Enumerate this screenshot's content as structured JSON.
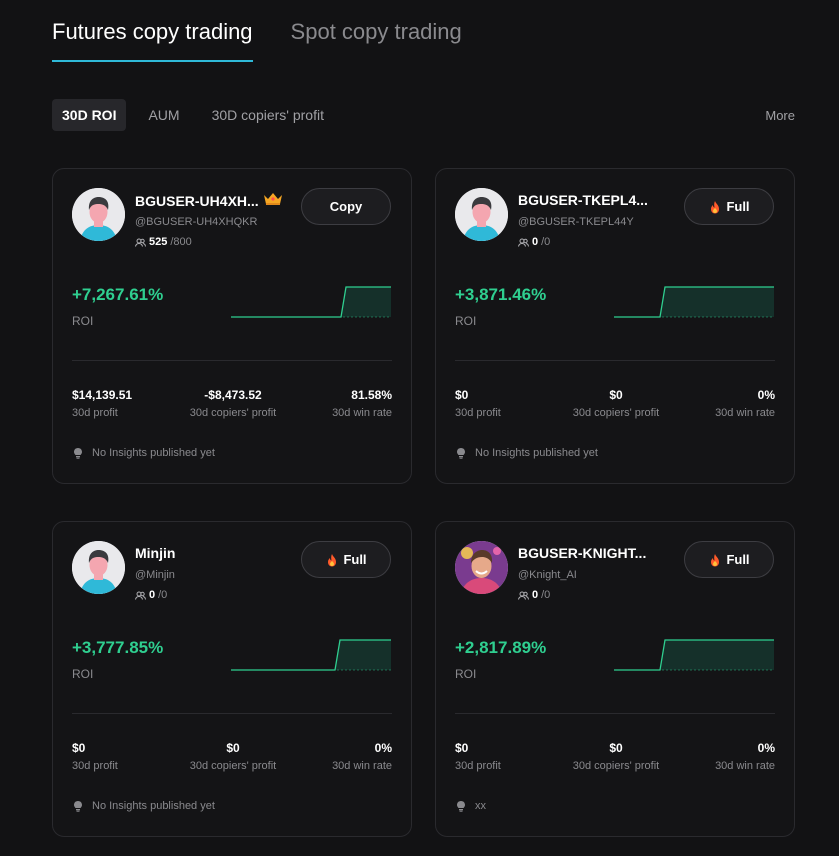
{
  "tabs": [
    {
      "label": "Futures copy trading",
      "active": true
    },
    {
      "label": "Spot copy trading",
      "active": false
    }
  ],
  "filters": [
    {
      "label": "30D ROI",
      "active": true
    },
    {
      "label": "AUM",
      "active": false
    },
    {
      "label": "30D copiers' profit",
      "active": false
    }
  ],
  "more_label": "More",
  "colors": {
    "accent": "#2fb9d8",
    "positive": "#2fcf90",
    "background": "#121214"
  },
  "traders": [
    {
      "name": "BGUSER-UH4XH...",
      "badge_icon": "crown-icon",
      "handle": "@BGUSER-UH4XHQKR",
      "copiers_current": "525",
      "copiers_max": "/800",
      "button_label": "Copy",
      "button_icon": null,
      "roi": "+7,267.61%",
      "roi_label": "ROI",
      "avatar": "default-avatar",
      "stats": [
        {
          "value": "$14,139.51",
          "label": "30d profit"
        },
        {
          "value": "-$8,473.52",
          "label": "30d copiers' profit"
        },
        {
          "value": "81.58%",
          "label": "30d win rate"
        }
      ],
      "insight": "No Insights published yet"
    },
    {
      "name": "BGUSER-TKEPL4...",
      "badge_icon": null,
      "handle": "@BGUSER-TKEPL44Y",
      "copiers_current": "0",
      "copiers_max": "/0",
      "button_label": "Full",
      "button_icon": "fire-icon",
      "roi": "+3,871.46%",
      "roi_label": "ROI",
      "avatar": "default-avatar",
      "stats": [
        {
          "value": "$0",
          "label": "30d profit"
        },
        {
          "value": "$0",
          "label": "30d copiers' profit"
        },
        {
          "value": "0%",
          "label": "30d win rate"
        }
      ],
      "insight": "No Insights published yet"
    },
    {
      "name": "Minjin",
      "badge_icon": null,
      "handle": "@Minjin",
      "copiers_current": "0",
      "copiers_max": "/0",
      "button_label": "Full",
      "button_icon": "fire-icon",
      "roi": "+3,777.85%",
      "roi_label": "ROI",
      "avatar": "default-avatar",
      "stats": [
        {
          "value": "$0",
          "label": "30d profit"
        },
        {
          "value": "$0",
          "label": "30d copiers' profit"
        },
        {
          "value": "0%",
          "label": "30d win rate"
        }
      ],
      "insight": "No Insights published yet"
    },
    {
      "name": "BGUSER-KNIGHT...",
      "badge_icon": null,
      "handle": "@Knight_AI",
      "copiers_current": "0",
      "copiers_max": "/0",
      "button_label": "Full",
      "button_icon": "fire-icon",
      "roi": "+2,817.89%",
      "roi_label": "ROI",
      "avatar": "photo-avatar",
      "stats": [
        {
          "value": "$0",
          "label": "30d profit"
        },
        {
          "value": "$0",
          "label": "30d copiers' profit"
        },
        {
          "value": "0%",
          "label": "30d win rate"
        }
      ],
      "insight": "xx"
    }
  ]
}
